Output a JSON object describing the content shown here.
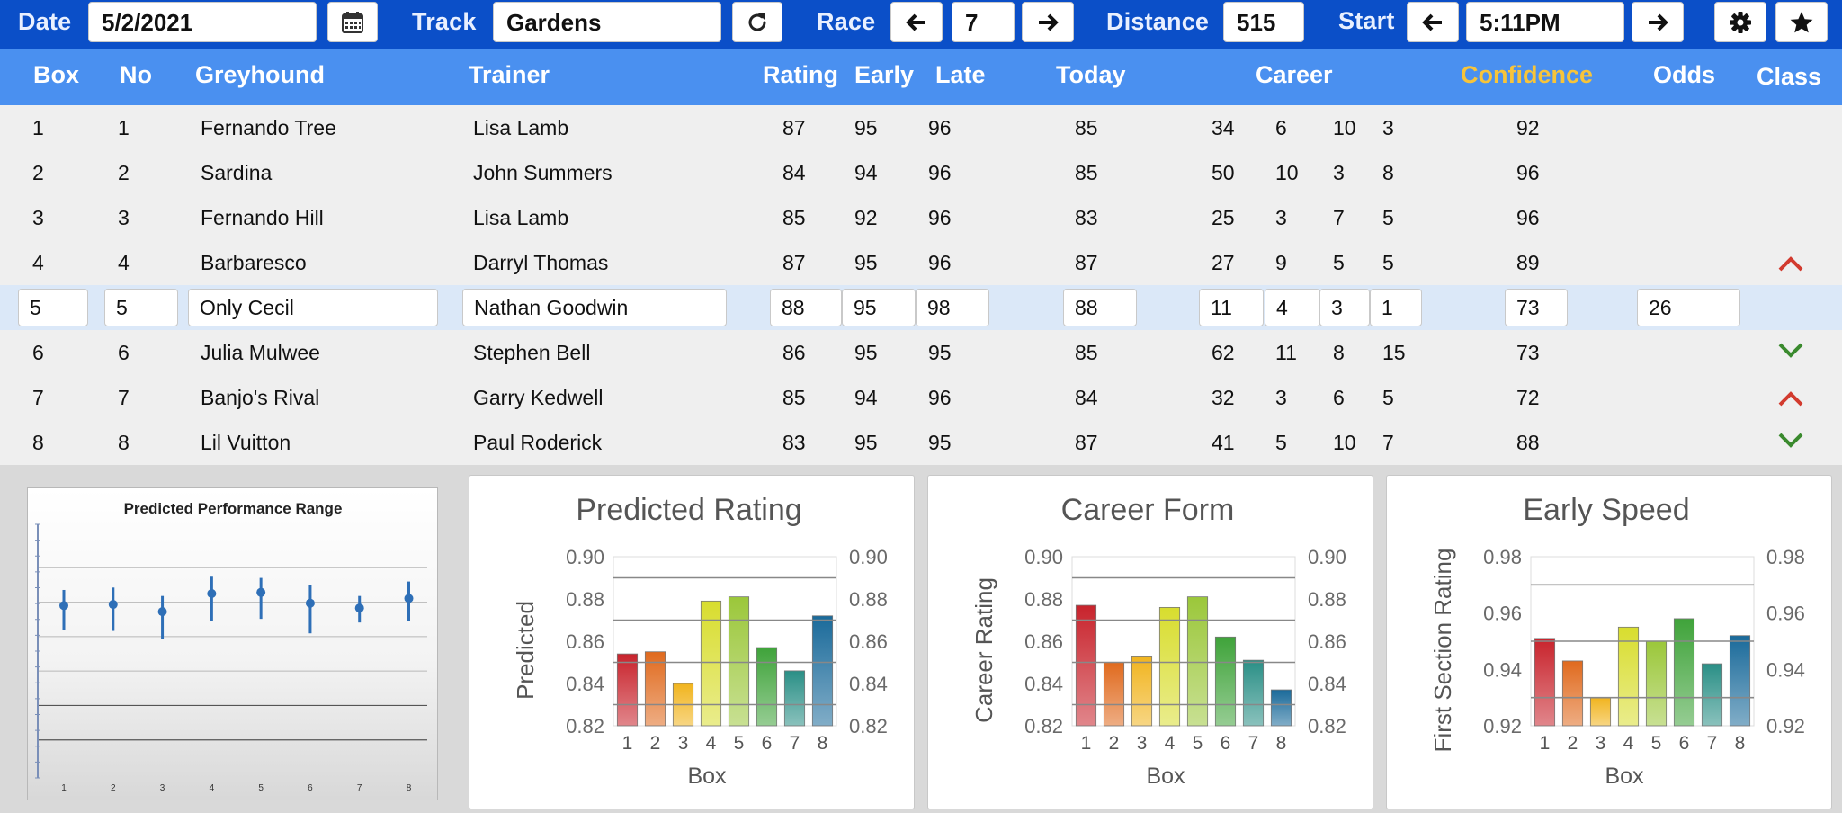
{
  "toolbar": {
    "date_label": "Date",
    "date_value": "5/2/2021",
    "calendar_icon": "calendar-icon",
    "track_label": "Track",
    "track_value": "Gardens",
    "refresh_icon": "refresh-icon",
    "race_label": "Race",
    "race_value": "7",
    "distance_label": "Distance",
    "distance_value": "515",
    "start_label": "Start",
    "start_value": "5:11PM",
    "settings_icon": "gear-icon",
    "favorite_icon": "star-icon"
  },
  "columns": {
    "box": "Box",
    "no": "No",
    "greyhound": "Greyhound",
    "trainer": "Trainer",
    "rating": "Rating",
    "early": "Early",
    "late": "Late",
    "today": "Today",
    "career": "Career",
    "confidence": "Confidence",
    "odds": "Odds",
    "class": "Class"
  },
  "colors": {
    "toolbar_bg": "#0b4fc8",
    "header_bg": "#4a90f0",
    "confidence_header": "#f7c43a",
    "row_selected": "#dbe8f8",
    "class_up": "#d23a2e",
    "class_down": "#3a8a2e"
  },
  "rows": [
    {
      "box": "1",
      "no": "1",
      "greyhound": "Fernando Tree",
      "trainer": "Lisa Lamb",
      "rating": "87",
      "early": "95",
      "late": "96",
      "today": "85",
      "career": [
        "34",
        "6",
        "10",
        "3"
      ],
      "confidence": "92",
      "odds": "",
      "class": ""
    },
    {
      "box": "2",
      "no": "2",
      "greyhound": "Sardina",
      "trainer": "John Summers",
      "rating": "84",
      "early": "94",
      "late": "96",
      "today": "85",
      "career": [
        "50",
        "10",
        "3",
        "8"
      ],
      "confidence": "96",
      "odds": "",
      "class": ""
    },
    {
      "box": "3",
      "no": "3",
      "greyhound": "Fernando Hill",
      "trainer": "Lisa Lamb",
      "rating": "85",
      "early": "92",
      "late": "96",
      "today": "83",
      "career": [
        "25",
        "3",
        "7",
        "5"
      ],
      "confidence": "96",
      "odds": "",
      "class": ""
    },
    {
      "box": "4",
      "no": "4",
      "greyhound": "Barbaresco",
      "trainer": "Darryl Thomas",
      "rating": "87",
      "early": "95",
      "late": "96",
      "today": "87",
      "career": [
        "27",
        "9",
        "5",
        "5"
      ],
      "confidence": "89",
      "odds": "",
      "class": "up"
    },
    {
      "box": "5",
      "no": "5",
      "greyhound": "Only Cecil",
      "trainer": "Nathan Goodwin",
      "rating": "88",
      "early": "95",
      "late": "98",
      "today": "88",
      "career": [
        "11",
        "4",
        "3",
        "1"
      ],
      "confidence": "73",
      "odds": "26",
      "class": ""
    },
    {
      "box": "6",
      "no": "6",
      "greyhound": "Julia Mulwee",
      "trainer": "Stephen Bell",
      "rating": "86",
      "early": "95",
      "late": "95",
      "today": "85",
      "career": [
        "62",
        "11",
        "8",
        "15"
      ],
      "confidence": "73",
      "odds": "",
      "class": "down"
    },
    {
      "box": "7",
      "no": "7",
      "greyhound": "Banjo's Rival",
      "trainer": "Garry Kedwell",
      "rating": "85",
      "early": "94",
      "late": "96",
      "today": "84",
      "career": [
        "32",
        "3",
        "6",
        "5"
      ],
      "confidence": "72",
      "odds": "",
      "class": "up"
    },
    {
      "box": "8",
      "no": "8",
      "greyhound": "Lil Vuitton",
      "trainer": "Paul Roderick",
      "rating": "83",
      "early": "95",
      "late": "95",
      "today": "87",
      "career": [
        "41",
        "5",
        "10",
        "7"
      ],
      "confidence": "88",
      "odds": "",
      "class": "down"
    }
  ],
  "selected_row": 4,
  "chart_data": [
    {
      "type": "scatter",
      "title": "Predicted Performance Range",
      "x": [
        1,
        2,
        3,
        4,
        5,
        6,
        7,
        8
      ],
      "y": [
        0.7,
        0.705,
        0.675,
        0.75,
        0.755,
        0.71,
        0.69,
        0.73
      ],
      "y_low": [
        0.6,
        0.595,
        0.56,
        0.635,
        0.645,
        0.585,
        0.63,
        0.635
      ],
      "y_high": [
        0.765,
        0.775,
        0.74,
        0.82,
        0.815,
        0.785,
        0.74,
        0.8
      ],
      "ylim": [
        0.0,
        1.0
      ],
      "grid": true,
      "point_color": "#2e6fb7"
    },
    {
      "type": "bar",
      "title": "Predicted Rating",
      "categories": [
        "1",
        "2",
        "3",
        "4",
        "5",
        "6",
        "7",
        "8"
      ],
      "values": [
        0.854,
        0.855,
        0.84,
        0.879,
        0.881,
        0.857,
        0.846,
        0.872
      ],
      "xlabel": "Box",
      "ylabel": "Predicted",
      "ylim": [
        0.82,
        0.9
      ],
      "yticks": [
        "0.82",
        "0.84",
        "0.86",
        "0.88",
        "0.90"
      ],
      "ref_lines": [
        0.89,
        0.87,
        0.85,
        0.83
      ],
      "bar_colors": [
        "#c8232c",
        "#e06a1e",
        "#f1b41e",
        "#d8dd2e",
        "#9bc73a",
        "#3fa33a",
        "#2a8f86",
        "#1a6a9a"
      ]
    },
    {
      "type": "bar",
      "title": "Career Form",
      "categories": [
        "1",
        "2",
        "3",
        "4",
        "5",
        "6",
        "7",
        "8"
      ],
      "values": [
        0.877,
        0.85,
        0.853,
        0.876,
        0.881,
        0.862,
        0.851,
        0.837
      ],
      "xlabel": "Box",
      "ylabel": "Career Rating",
      "ylim": [
        0.82,
        0.9
      ],
      "yticks": [
        "0.82",
        "0.84",
        "0.86",
        "0.88",
        "0.90"
      ],
      "ref_lines": [
        0.89,
        0.87,
        0.85,
        0.83
      ],
      "bar_colors": [
        "#c8232c",
        "#e06a1e",
        "#f1b41e",
        "#d8dd2e",
        "#9bc73a",
        "#3fa33a",
        "#2a8f86",
        "#1a6a9a"
      ]
    },
    {
      "type": "bar",
      "title": "Early Speed",
      "categories": [
        "1",
        "2",
        "3",
        "4",
        "5",
        "6",
        "7",
        "8"
      ],
      "values": [
        0.951,
        0.943,
        0.93,
        0.955,
        0.95,
        0.958,
        0.942,
        0.952
      ],
      "xlabel": "Box",
      "ylabel": "First Section Rating",
      "ylim": [
        0.92,
        0.98
      ],
      "yticks": [
        "0.92",
        "0.94",
        "0.96",
        "0.98"
      ],
      "ref_lines": [
        0.97,
        0.95,
        0.93
      ],
      "bar_colors": [
        "#c8232c",
        "#e06a1e",
        "#f1b41e",
        "#d8dd2e",
        "#9bc73a",
        "#3fa33a",
        "#2a8f86",
        "#1a6a9a"
      ]
    }
  ]
}
